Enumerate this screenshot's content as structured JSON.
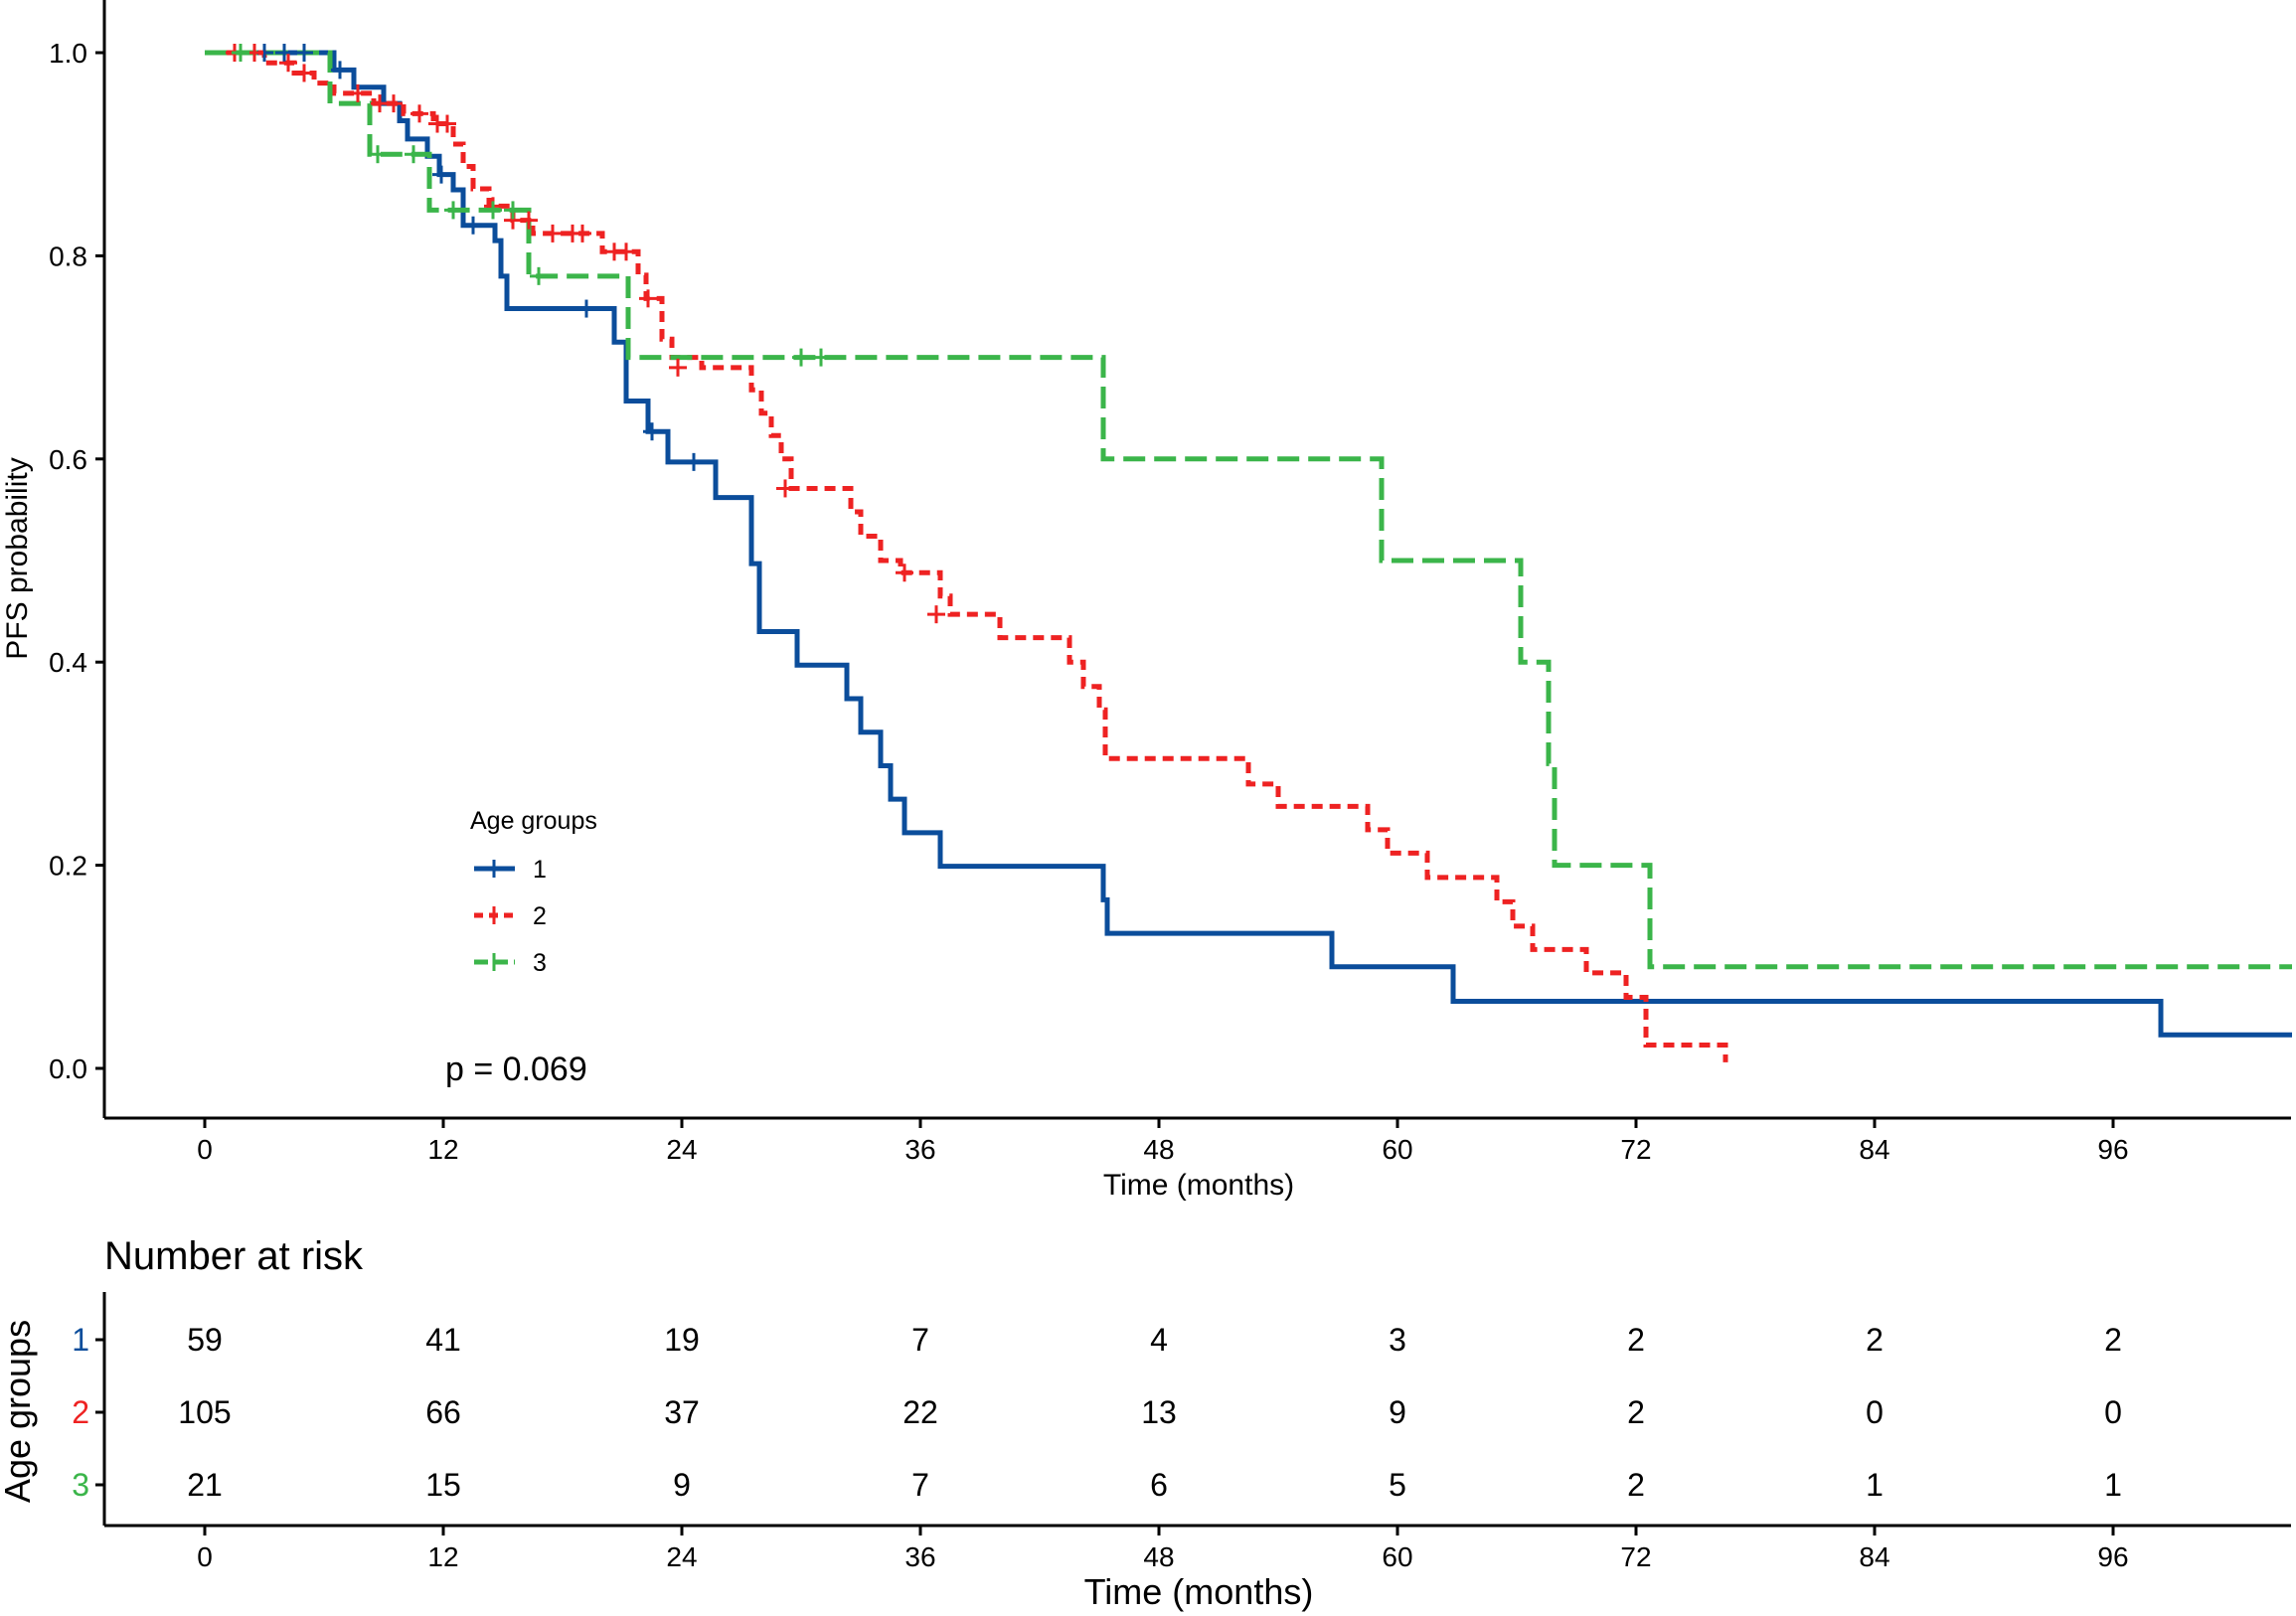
{
  "chart_data": [
    {
      "type": "line",
      "subtype": "kaplan-meier",
      "title": "",
      "xlabel": "Time (months)",
      "ylabel": "PFS probability",
      "xlim": [
        -10,
        105
      ],
      "ylim": [
        -0.05,
        1.05
      ],
      "xticks": [
        0,
        12,
        24,
        36,
        48,
        60,
        72,
        84,
        96
      ],
      "yticks": [
        0.0,
        0.2,
        0.4,
        0.6,
        0.8,
        1.0
      ],
      "ytick_labels": [
        "0.0",
        "0.2",
        "0.4",
        "0.6",
        "0.8",
        "1.0"
      ],
      "grid": false,
      "legend": {
        "title": "Age groups",
        "position": "lower-left",
        "entries": [
          "1",
          "2",
          "3"
        ]
      },
      "annotation": "p = 0.069",
      "series": [
        {
          "name": "1",
          "color": "#0b4d9b",
          "style": "solid",
          "steps": [
            [
              0,
              1.0
            ],
            [
              6.5,
              0.983
            ],
            [
              7.5,
              0.966
            ],
            [
              9,
              0.95
            ],
            [
              9.8,
              0.933
            ],
            [
              10.2,
              0.915
            ],
            [
              11.2,
              0.898
            ],
            [
              11.8,
              0.88
            ],
            [
              12.5,
              0.865
            ],
            [
              13,
              0.83
            ],
            [
              14.6,
              0.815
            ],
            [
              14.9,
              0.78
            ],
            [
              15.2,
              0.748
            ],
            [
              20.6,
              0.715
            ],
            [
              21.2,
              0.657
            ],
            [
              22.3,
              0.627
            ],
            [
              23.3,
              0.597
            ],
            [
              25.7,
              0.562
            ],
            [
              27.5,
              0.497
            ],
            [
              27.9,
              0.43
            ],
            [
              29.8,
              0.397
            ],
            [
              32.3,
              0.364
            ],
            [
              33,
              0.331
            ],
            [
              34,
              0.298
            ],
            [
              34.5,
              0.265
            ],
            [
              35.2,
              0.232
            ],
            [
              37,
              0.199
            ],
            [
              45.2,
              0.166
            ],
            [
              45.4,
              0.133
            ],
            [
              56.7,
              0.1
            ],
            [
              62.8,
              0.066
            ],
            [
              98.4,
              0.033
            ],
            [
              105,
              0.033
            ]
          ],
          "censor": [
            [
              3,
              1.0
            ],
            [
              4,
              1.0
            ],
            [
              5,
              1.0
            ],
            [
              6.8,
              0.983
            ],
            [
              11.9,
              0.88
            ],
            [
              13.5,
              0.83
            ],
            [
              19.2,
              0.748
            ],
            [
              22.5,
              0.627
            ],
            [
              24.6,
              0.597
            ]
          ]
        },
        {
          "name": "2",
          "color": "#ee2222",
          "style": "dashed",
          "steps": [
            [
              0,
              1.0
            ],
            [
              3,
              0.99
            ],
            [
              4.5,
              0.98
            ],
            [
              5.5,
              0.97
            ],
            [
              6.5,
              0.96
            ],
            [
              8.5,
              0.95
            ],
            [
              10,
              0.94
            ],
            [
              11.5,
              0.93
            ],
            [
              12.5,
              0.91
            ],
            [
              13,
              0.888
            ],
            [
              13.5,
              0.866
            ],
            [
              14.3,
              0.849
            ],
            [
              15.5,
              0.835
            ],
            [
              16.5,
              0.822
            ],
            [
              20,
              0.804
            ],
            [
              21.8,
              0.781
            ],
            [
              22.2,
              0.758
            ],
            [
              23,
              0.718
            ],
            [
              23.5,
              0.7
            ],
            [
              25,
              0.69
            ],
            [
              27.5,
              0.668
            ],
            [
              28,
              0.645
            ],
            [
              28.5,
              0.623
            ],
            [
              29,
              0.6
            ],
            [
              29.5,
              0.571
            ],
            [
              32.5,
              0.548
            ],
            [
              33,
              0.524
            ],
            [
              34,
              0.5
            ],
            [
              35,
              0.488
            ],
            [
              37,
              0.465
            ],
            [
              37.5,
              0.447
            ],
            [
              40,
              0.424
            ],
            [
              43.5,
              0.4
            ],
            [
              44.2,
              0.376
            ],
            [
              45,
              0.353
            ],
            [
              45.3,
              0.305
            ],
            [
              52.5,
              0.28
            ],
            [
              54,
              0.258
            ],
            [
              58.5,
              0.235
            ],
            [
              59.5,
              0.212
            ],
            [
              61.5,
              0.188
            ],
            [
              65,
              0.164
            ],
            [
              65.8,
              0.14
            ],
            [
              66.8,
              0.117
            ],
            [
              69.5,
              0.094
            ],
            [
              71.5,
              0.07
            ],
            [
              72.5,
              0.023
            ],
            [
              76.5,
              0.006
            ]
          ],
          "censor": [
            [
              1.5,
              1.0
            ],
            [
              2.5,
              1.0
            ],
            [
              4.2,
              0.99
            ],
            [
              5,
              0.98
            ],
            [
              7.7,
              0.96
            ],
            [
              8.8,
              0.95
            ],
            [
              9.5,
              0.95
            ],
            [
              10.8,
              0.94
            ],
            [
              11.7,
              0.93
            ],
            [
              12.2,
              0.93
            ],
            [
              14.5,
              0.849
            ],
            [
              15.5,
              0.835
            ],
            [
              16.3,
              0.835
            ],
            [
              17.5,
              0.822
            ],
            [
              18.5,
              0.822
            ],
            [
              19,
              0.822
            ],
            [
              20.6,
              0.804
            ],
            [
              21.2,
              0.804
            ],
            [
              22.3,
              0.758
            ],
            [
              23.8,
              0.69
            ],
            [
              29.2,
              0.571
            ],
            [
              35.2,
              0.488
            ],
            [
              36.8,
              0.447
            ]
          ]
        },
        {
          "name": "3",
          "color": "#3bb54a",
          "style": "dashed",
          "steps": [
            [
              0,
              1.0
            ],
            [
              6.3,
              0.95
            ],
            [
              8.3,
              0.9
            ],
            [
              11.3,
              0.845
            ],
            [
              16.3,
              0.78
            ],
            [
              21.3,
              0.7
            ],
            [
              45.2,
              0.6
            ],
            [
              59.2,
              0.5
            ],
            [
              66.2,
              0.4
            ],
            [
              67.6,
              0.3
            ],
            [
              67.9,
              0.2
            ],
            [
              72.7,
              0.1
            ],
            [
              105,
              0.1
            ]
          ],
          "censor": [
            [
              1.8,
              1.0
            ],
            [
              8.7,
              0.9
            ],
            [
              10.5,
              0.9
            ],
            [
              12.5,
              0.845
            ],
            [
              14.5,
              0.845
            ],
            [
              15.5,
              0.845
            ],
            [
              16.8,
              0.78
            ],
            [
              30,
              0.7
            ],
            [
              31,
              0.7
            ]
          ]
        }
      ]
    },
    {
      "type": "table",
      "title": "Number at risk",
      "xlabel": "Time (months)",
      "ylabel": "Age groups",
      "xticks": [
        0,
        12,
        24,
        36,
        48,
        60,
        72,
        84,
        96
      ],
      "rows": [
        {
          "name": "1",
          "color": "#0b4d9b",
          "values": [
            59,
            41,
            19,
            7,
            4,
            3,
            2,
            2,
            2
          ]
        },
        {
          "name": "2",
          "color": "#ee2222",
          "values": [
            105,
            66,
            37,
            22,
            13,
            9,
            2,
            0,
            0
          ]
        },
        {
          "name": "3",
          "color": "#3bb54a",
          "values": [
            21,
            15,
            9,
            7,
            6,
            5,
            2,
            1,
            1
          ]
        }
      ]
    }
  ]
}
